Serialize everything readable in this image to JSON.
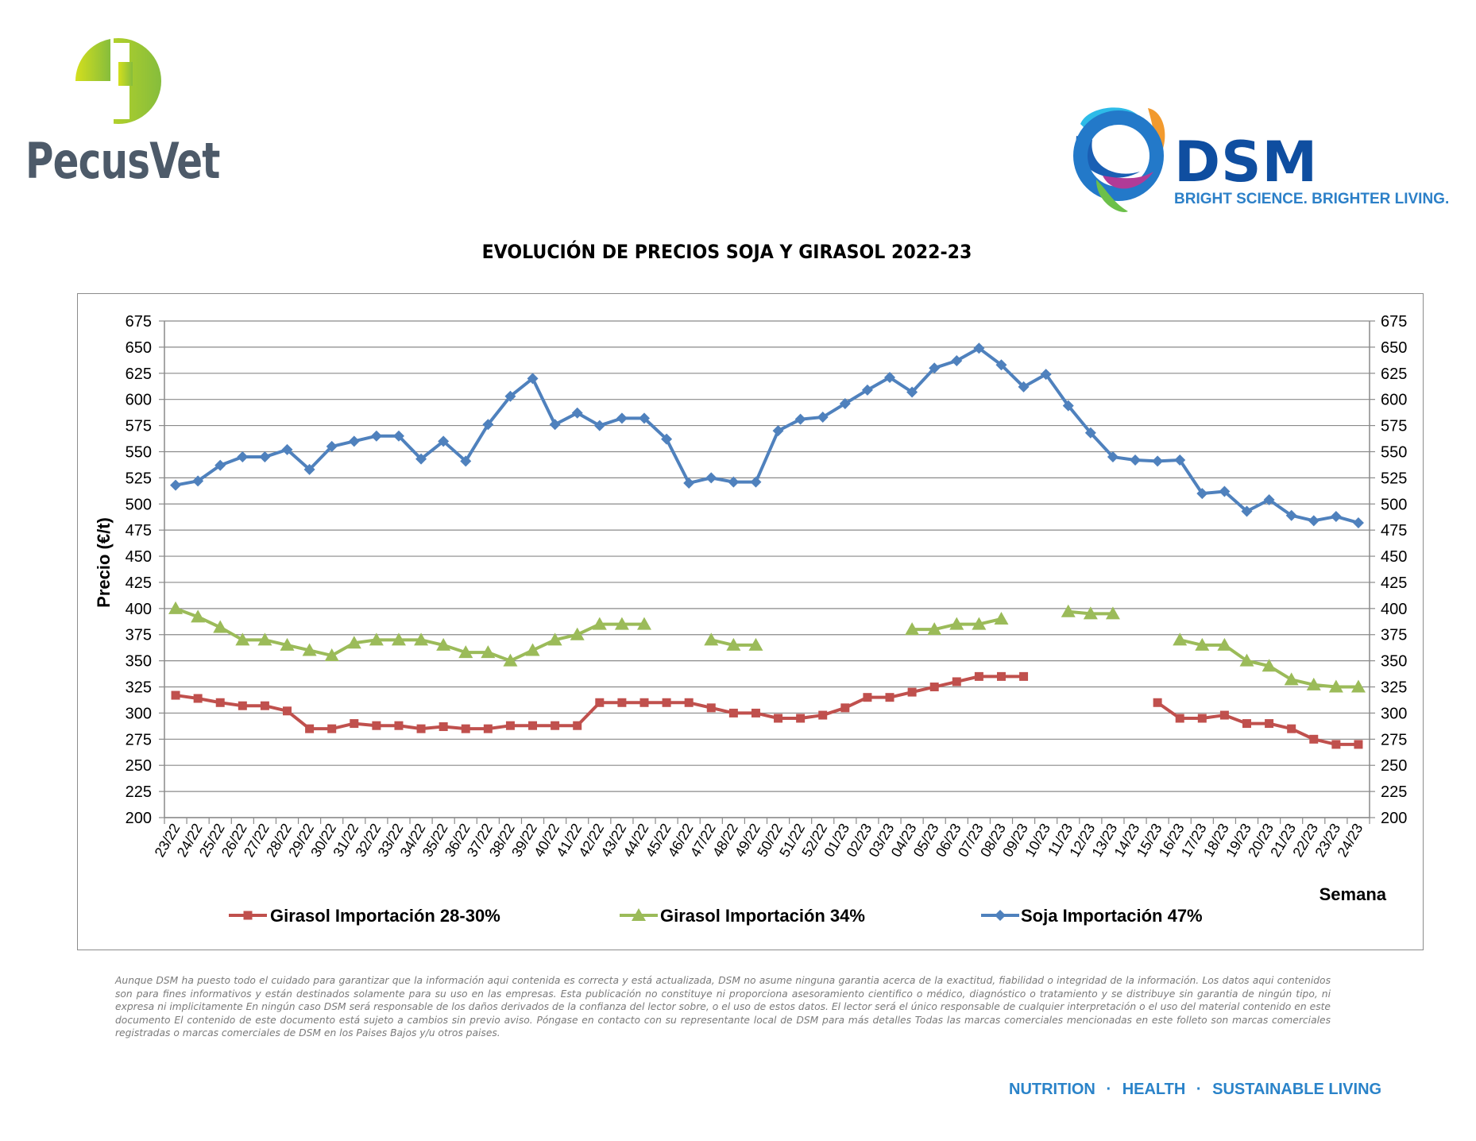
{
  "header": {
    "pecusvet_brand": "PecusVet",
    "dsm_brand": "DSM",
    "dsm_tagline": "BRIGHT SCIENCE. BRIGHTER LIVING."
  },
  "colors": {
    "girasol_28_30": "#c0504d",
    "girasol_34": "#9bbb59",
    "soja_47": "#4f81bd",
    "pecusvet_green": "#8cc63f",
    "pecusvet_text": "#4d5a69",
    "dsm_blue": "#0f4ea0"
  },
  "chart_data": {
    "type": "line",
    "title": "EVOLUCIÓN DE PRECIOS SOJA Y GIRASOL 2022-23",
    "ylabel": "Precio (€/t)",
    "xlabel": "Semana",
    "ylim": [
      200,
      675
    ],
    "yticks": [
      200,
      225,
      250,
      275,
      300,
      325,
      350,
      375,
      400,
      425,
      450,
      475,
      500,
      525,
      550,
      575,
      600,
      625,
      650,
      675
    ],
    "secondary_y_axis": true,
    "grid": true,
    "legend_position": "bottom",
    "categories": [
      "23/22",
      "24/22",
      "25/22",
      "26/22",
      "27/22",
      "28/22",
      "29/22",
      "30/22",
      "31/22",
      "32/22",
      "33/22",
      "34/22",
      "35/22",
      "36/22",
      "37/22",
      "38/22",
      "39/22",
      "40/22",
      "41/22",
      "42/22",
      "43/22",
      "44/22",
      "45/22",
      "46/22",
      "47/22",
      "48/22",
      "49/22",
      "50/22",
      "51/22",
      "52/22",
      "01/23",
      "02/23",
      "03/23",
      "04/23",
      "05/23",
      "06/23",
      "07/23",
      "08/23",
      "09/23",
      "10/23",
      "11/23",
      "12/23",
      "13/23",
      "14/23",
      "15/23",
      "16/23",
      "17/23",
      "18/23",
      "19/23",
      "20/23",
      "21/23",
      "22/23",
      "23/23",
      "24/23"
    ],
    "series": [
      {
        "name": "Girasol Importación 28-30%",
        "marker": "square",
        "values": [
          317,
          314,
          310,
          307,
          307,
          302,
          285,
          285,
          290,
          288,
          288,
          285,
          287,
          285,
          285,
          288,
          288,
          288,
          288,
          310,
          310,
          310,
          310,
          310,
          305,
          300,
          300,
          295,
          295,
          298,
          305,
          315,
          315,
          320,
          325,
          330,
          335,
          335,
          335,
          null,
          null,
          null,
          null,
          null,
          310,
          295,
          295,
          298,
          290,
          290,
          285,
          275,
          270,
          270
        ]
      },
      {
        "name": "Girasol Importación 34%",
        "marker": "triangle",
        "values": [
          400,
          392,
          382,
          370,
          370,
          365,
          360,
          355,
          367,
          370,
          370,
          370,
          365,
          358,
          358,
          350,
          360,
          370,
          375,
          385,
          385,
          385,
          null,
          null,
          370,
          365,
          365,
          null,
          null,
          null,
          null,
          null,
          null,
          380,
          380,
          385,
          385,
          390,
          null,
          null,
          397,
          395,
          395,
          null,
          null,
          370,
          365,
          365,
          350,
          345,
          332,
          327,
          325,
          325
        ]
      },
      {
        "name": "Soja Importación 47%",
        "marker": "diamond",
        "values": [
          518,
          522,
          537,
          545,
          545,
          552,
          533,
          555,
          560,
          565,
          565,
          543,
          560,
          541,
          576,
          603,
          620,
          576,
          587,
          575,
          582,
          582,
          562,
          520,
          525,
          521,
          521,
          570,
          581,
          583,
          596,
          609,
          621,
          607,
          630,
          637,
          649,
          633,
          612,
          624,
          594,
          568,
          545,
          542,
          541,
          542,
          510,
          512,
          493,
          504,
          489,
          484,
          488,
          482
        ]
      }
    ]
  },
  "disclaimer": "Aunque DSM ha puesto todo el cuidado para garantizar que la información aqui contenida es correcta y está actualizada, DSM no asume ninguna garantia acerca de la exactitud, fiabilidad o integridad de la información. Los datos aqui contenidos son para fines informativos y están destinados solamente para su uso en las empresas. Esta publicación no constituye ni proporciona asesoramiento cientifico o médico, diagnóstico o tratamiento y se distribuye sin garantia de ningún tipo, ni expresa ni implicitamente En ningún caso DSM será responsable de los daños derivados de la confianza del lector sobre, o el uso de estos datos. El lector será el único responsable de cualquier interpretación o el uso del material contenido en este documento El contenido de este documento está sujeto a cambios sin previo aviso. Póngase en contacto con su representante local de DSM para más detalles Todas las marcas comerciales mencionadas en este folleto son marcas comerciales registradas o marcas comerciales de DSM en los Paises Bajos y/u otros paises.",
  "footer": {
    "nutrition": "NUTRITION",
    "health": "HEALTH",
    "sustainable": "SUSTAINABLE LIVING",
    "separator": "·"
  }
}
